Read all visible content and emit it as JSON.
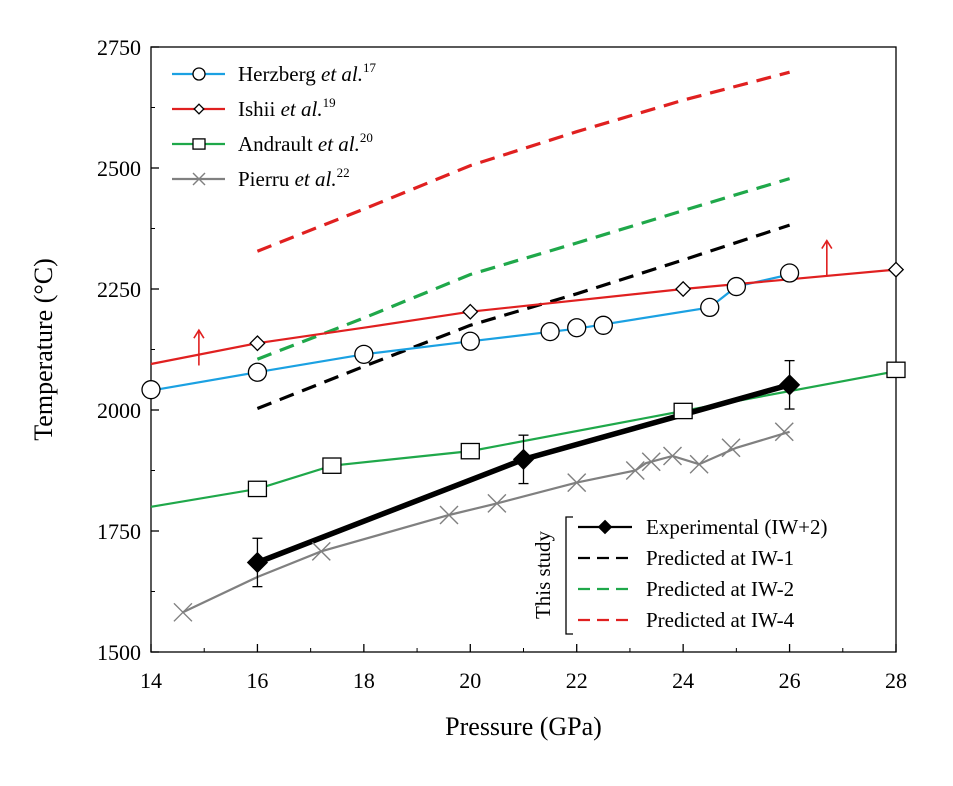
{
  "chart_data": {
    "type": "line",
    "title": "",
    "xlabel": "Pressure (GPa)",
    "ylabel": "Temperature (°C)",
    "xlim": [
      14,
      28
    ],
    "ylim": [
      1500,
      2750
    ],
    "xticks": [
      "14",
      "16",
      "18",
      "20",
      "22",
      "24",
      "26",
      "28"
    ],
    "yticks": [
      "1500",
      "1750",
      "2000",
      "2250",
      "2500",
      "2750"
    ],
    "grid": false,
    "legend_top": {
      "placement": "top-left",
      "entries": [
        {
          "name": "Herzberg",
          "suffix": "et al.",
          "ref": "17"
        },
        {
          "name": "Ishii",
          "suffix": "et al.",
          "ref": "19"
        },
        {
          "name": "Andrault",
          "suffix": "et al.",
          "ref": "20"
        },
        {
          "name": "Pierru",
          "suffix": "et al.",
          "ref": "22"
        }
      ]
    },
    "legend_bottom": {
      "placement": "bottom-right",
      "group_label": "This study",
      "entries": [
        "Experimental (IW+2)",
        "Predicted at IW-1",
        "Predicted at IW-2",
        "Predicted at IW-4"
      ]
    },
    "series": [
      {
        "key": "herzberg",
        "color": "#1ba1e2",
        "marker": "circle",
        "line": [
          [
            14,
            2040
          ],
          [
            16,
            2078
          ],
          [
            18,
            2115
          ],
          [
            20,
            2142
          ],
          [
            22,
            2168
          ],
          [
            24.5,
            2212
          ],
          [
            25,
            2255
          ],
          [
            26,
            2280
          ]
        ],
        "points": [
          [
            14,
            2042
          ],
          [
            16,
            2078
          ],
          [
            18,
            2115
          ],
          [
            20,
            2142
          ],
          [
            21.5,
            2162
          ],
          [
            22,
            2170
          ],
          [
            22.5,
            2175
          ],
          [
            24.5,
            2212
          ],
          [
            25,
            2255
          ],
          [
            26,
            2283
          ]
        ]
      },
      {
        "key": "ishii",
        "color": "#e02020",
        "marker": "diamond",
        "line": [
          [
            14,
            2095
          ],
          [
            16,
            2138
          ],
          [
            18,
            2170
          ],
          [
            20,
            2203
          ],
          [
            24,
            2250
          ],
          [
            28,
            2290
          ]
        ],
        "points": [
          [
            16,
            2138
          ],
          [
            20,
            2203
          ],
          [
            24,
            2250
          ],
          [
            28,
            2290
          ]
        ]
      },
      {
        "key": "andrault",
        "color": "#1fa84a",
        "marker": "square",
        "line": [
          [
            14,
            1800
          ],
          [
            16,
            1837
          ],
          [
            17.4,
            1885
          ],
          [
            20,
            1915
          ],
          [
            24,
            1998
          ],
          [
            28,
            2080
          ]
        ],
        "points": [
          [
            16,
            1837
          ],
          [
            17.4,
            1885
          ],
          [
            20,
            1915
          ],
          [
            24,
            1998
          ],
          [
            28,
            2083
          ]
        ]
      },
      {
        "key": "pierru",
        "color": "#808080",
        "marker": "x",
        "line": [
          [
            14.6,
            1582
          ],
          [
            16,
            1655
          ],
          [
            17.2,
            1708
          ],
          [
            19.6,
            1783
          ],
          [
            20.5,
            1807
          ],
          [
            22,
            1850
          ],
          [
            23.1,
            1875
          ],
          [
            23.3,
            1890
          ],
          [
            23.8,
            1905
          ],
          [
            24.3,
            1888
          ],
          [
            25,
            1922
          ],
          [
            26,
            1955
          ]
        ],
        "points": [
          [
            14.6,
            1582
          ],
          [
            17.2,
            1708
          ],
          [
            19.6,
            1783
          ],
          [
            20.5,
            1807
          ],
          [
            22,
            1850
          ],
          [
            23.1,
            1875
          ],
          [
            23.4,
            1893
          ],
          [
            23.8,
            1905
          ],
          [
            24.3,
            1888
          ],
          [
            24.9,
            1922
          ],
          [
            25.9,
            1955
          ]
        ]
      },
      {
        "key": "experimental",
        "color": "#000000",
        "marker": "filled-diamond",
        "points": [
          [
            16,
            1685
          ],
          [
            21,
            1898
          ],
          [
            26,
            2052
          ]
        ],
        "errors": [
          50,
          50,
          50
        ]
      },
      {
        "key": "iw1",
        "color": "#000000",
        "dashed": true,
        "line": [
          [
            16,
            2003
          ],
          [
            18,
            2090
          ],
          [
            20,
            2175
          ],
          [
            22,
            2240
          ],
          [
            24,
            2310
          ],
          [
            26,
            2382
          ]
        ]
      },
      {
        "key": "iw2",
        "color": "#1fa84a",
        "dashed": true,
        "line": [
          [
            16,
            2105
          ],
          [
            18,
            2190
          ],
          [
            20,
            2280
          ],
          [
            22,
            2345
          ],
          [
            24,
            2412
          ],
          [
            26,
            2478
          ]
        ]
      },
      {
        "key": "iw4",
        "color": "#e02020",
        "dashed": true,
        "line": [
          [
            16,
            2328
          ],
          [
            18,
            2415
          ],
          [
            20,
            2505
          ],
          [
            22,
            2575
          ],
          [
            24,
            2640
          ],
          [
            26,
            2698
          ]
        ]
      }
    ],
    "arrows": [
      {
        "x": 14.9,
        "y_from": 2092,
        "y_to": 2165,
        "color": "#e02020"
      },
      {
        "x": 26.7,
        "y_from": 2278,
        "y_to": 2350,
        "color": "#e02020"
      }
    ]
  }
}
